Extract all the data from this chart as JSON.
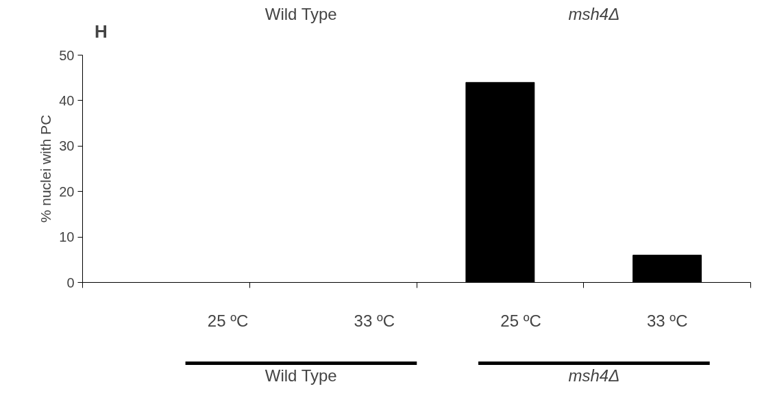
{
  "chart_data": {
    "type": "bar",
    "title": "H",
    "categories": [
      "25 ºC",
      "33 ºC",
      "25 ºC",
      "33 ºC"
    ],
    "values": [
      0,
      0,
      44,
      6
    ],
    "color": "#000000",
    "ylabel": "% nuclei with PC",
    "ylim": [
      0,
      50
    ],
    "yticks": [
      0,
      10,
      20,
      30,
      40,
      50
    ],
    "annotations": [
      "Wild Type",
      "msh4Δ",
      "Wild Type",
      "msh4Δ"
    ]
  }
}
